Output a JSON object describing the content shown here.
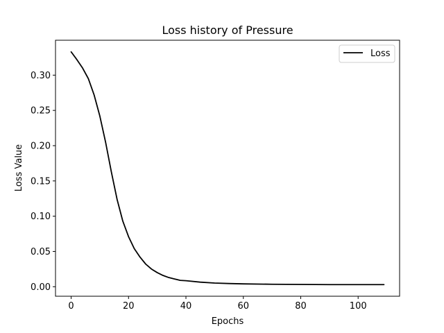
{
  "chart_data": {
    "type": "line",
    "title": "Loss history of Pressure",
    "xlabel": "Epochs",
    "ylabel": "Loss Value",
    "xlim": [
      -5.45,
      114.45
    ],
    "ylim": [
      -0.0135,
      0.3495
    ],
    "xticks": [
      0,
      20,
      40,
      60,
      80,
      100
    ],
    "xtick_labels": [
      "0",
      "20",
      "40",
      "60",
      "80",
      "100"
    ],
    "yticks": [
      0.0,
      0.05,
      0.1,
      0.15,
      0.2,
      0.25,
      0.3
    ],
    "ytick_labels": [
      "0.00",
      "0.05",
      "0.10",
      "0.15",
      "0.20",
      "0.25",
      "0.30"
    ],
    "grid": false,
    "legend_position": "top-right",
    "series": [
      {
        "name": "Loss",
        "color": "#000000",
        "x": [
          0,
          2,
          4,
          6,
          8,
          10,
          12,
          14,
          16,
          18,
          20,
          22,
          24,
          26,
          28,
          30,
          32,
          34,
          36,
          38,
          40,
          45,
          50,
          55,
          60,
          70,
          80,
          90,
          100,
          109
        ],
        "y": [
          0.333,
          0.322,
          0.31,
          0.295,
          0.272,
          0.242,
          0.205,
          0.163,
          0.124,
          0.093,
          0.071,
          0.054,
          0.042,
          0.032,
          0.025,
          0.02,
          0.016,
          0.013,
          0.011,
          0.009,
          0.0085,
          0.0065,
          0.0052,
          0.0045,
          0.004,
          0.0035,
          0.0032,
          0.003,
          0.003,
          0.003
        ]
      }
    ]
  }
}
